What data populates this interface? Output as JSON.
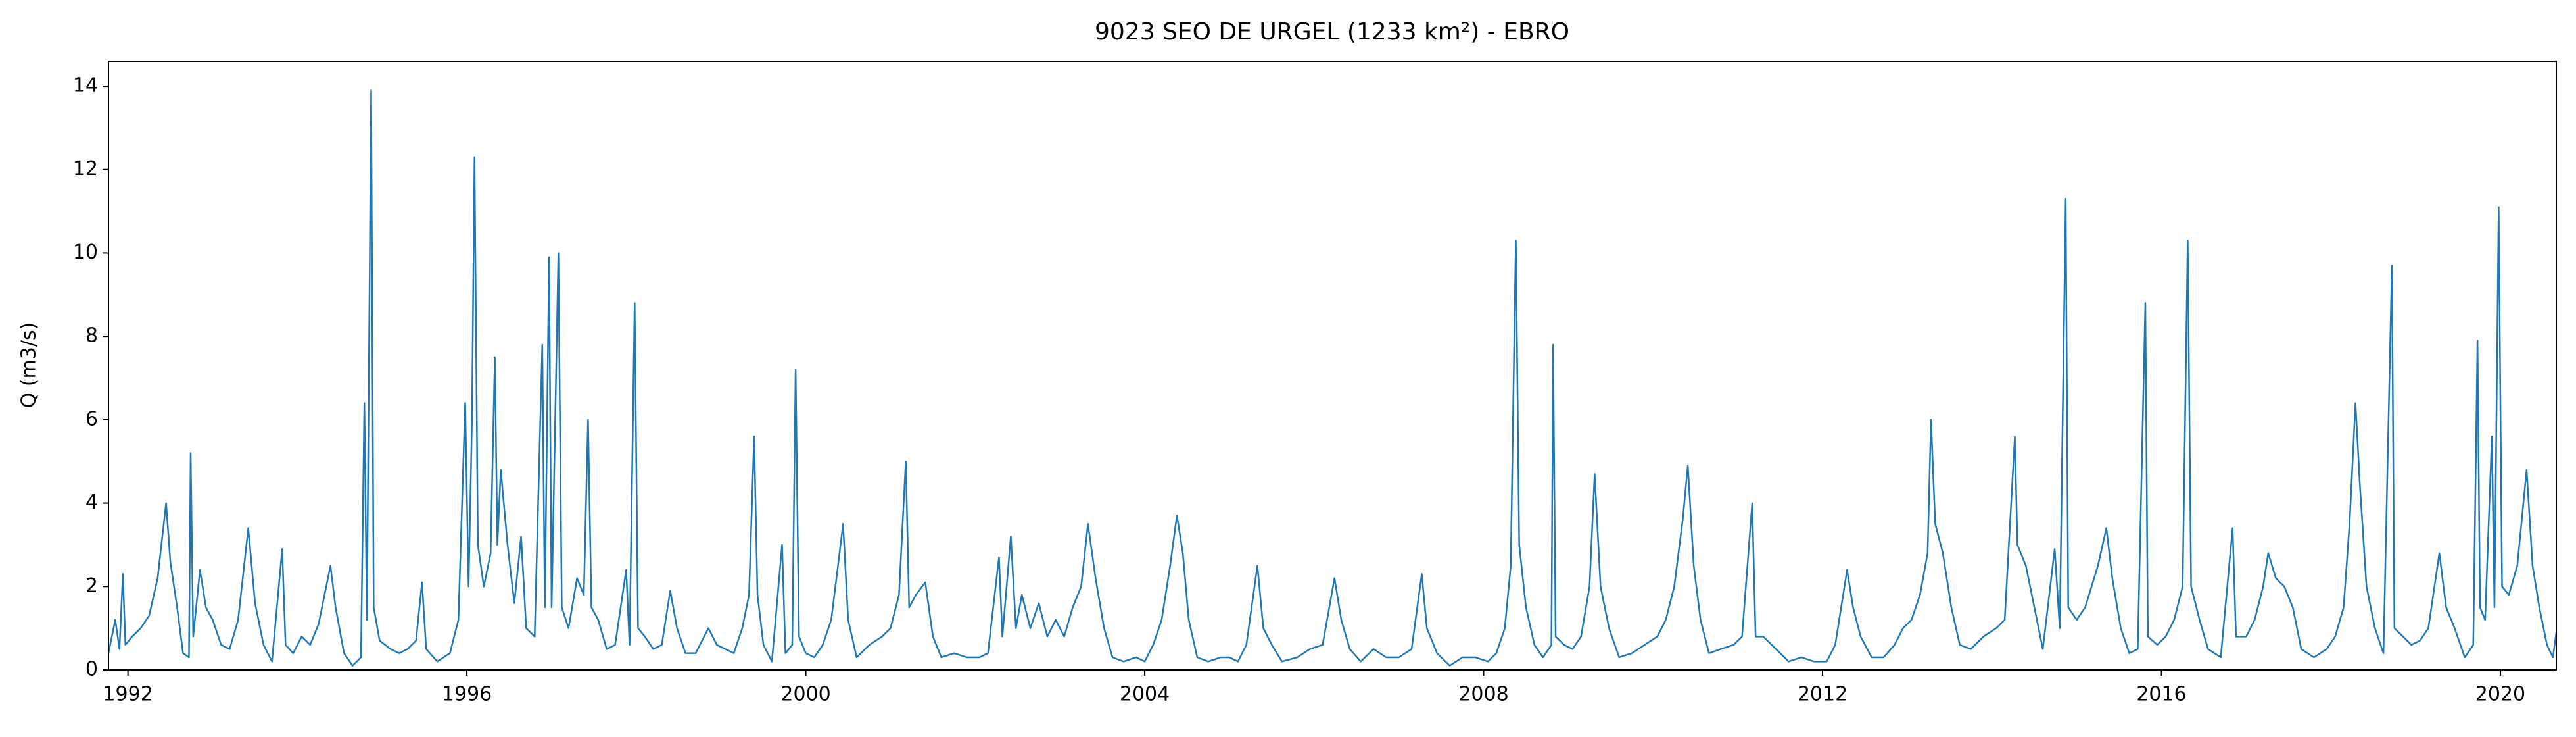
{
  "chart_data": {
    "type": "line",
    "title": "9023 SEO DE URGEL (1233 km²) - EBRO",
    "y_label": "Q (m3/s)",
    "xlim": [
      1991.77,
      2020.66
    ],
    "xticks": [
      1992,
      1996,
      2000,
      2004,
      2008,
      2012,
      2016,
      2020
    ],
    "ylim": [
      0,
      14.6
    ],
    "yticks": [
      0,
      2,
      4,
      6,
      8,
      10,
      12,
      14
    ],
    "grid": false,
    "series": [
      {
        "color": "#1f77b4",
        "x": [
          1991.77,
          1991.85,
          1991.9,
          1991.94,
          1991.97,
          1992.05,
          1992.15,
          1992.25,
          1992.35,
          1992.45,
          1992.5,
          1992.58,
          1992.65,
          1992.72,
          1992.74,
          1992.77,
          1992.85,
          1992.92,
          1993.0,
          1993.1,
          1993.2,
          1993.3,
          1993.42,
          1993.5,
          1993.6,
          1993.7,
          1993.82,
          1993.86,
          1993.95,
          1994.05,
          1994.15,
          1994.25,
          1994.39,
          1994.45,
          1994.55,
          1994.65,
          1994.75,
          1994.79,
          1994.82,
          1994.87,
          1994.9,
          1994.97,
          1995.1,
          1995.2,
          1995.3,
          1995.4,
          1995.47,
          1995.52,
          1995.65,
          1995.8,
          1995.9,
          1995.98,
          1996.02,
          1996.06,
          1996.09,
          1996.13,
          1996.2,
          1996.28,
          1996.33,
          1996.36,
          1996.4,
          1996.48,
          1996.56,
          1996.64,
          1996.7,
          1996.8,
          1996.89,
          1996.92,
          1996.97,
          1997.0,
          1997.08,
          1997.12,
          1997.2,
          1997.3,
          1997.38,
          1997.43,
          1997.47,
          1997.55,
          1997.65,
          1997.75,
          1997.88,
          1997.92,
          1997.98,
          1998.02,
          1998.1,
          1998.2,
          1998.3,
          1998.4,
          1998.48,
          1998.58,
          1998.7,
          1998.85,
          1998.95,
          1999.05,
          1999.15,
          1999.25,
          1999.33,
          1999.39,
          1999.43,
          1999.5,
          1999.6,
          1999.72,
          1999.76,
          1999.84,
          1999.88,
          1999.92,
          2000.0,
          2000.1,
          2000.2,
          2000.3,
          2000.38,
          2000.44,
          2000.5,
          2000.6,
          2000.75,
          2000.9,
          2001.0,
          2001.1,
          2001.18,
          2001.22,
          2001.3,
          2001.41,
          2001.5,
          2001.6,
          2001.75,
          2001.9,
          2002.05,
          2002.15,
          2002.28,
          2002.32,
          2002.42,
          2002.48,
          2002.55,
          2002.65,
          2002.75,
          2002.85,
          2002.95,
          2003.05,
          2003.15,
          2003.25,
          2003.33,
          2003.42,
          2003.52,
          2003.62,
          2003.75,
          2003.9,
          2004.0,
          2004.1,
          2004.2,
          2004.3,
          2004.38,
          2004.45,
          2004.52,
          2004.62,
          2004.75,
          2004.9,
          2005.0,
          2005.1,
          2005.2,
          2005.33,
          2005.4,
          2005.5,
          2005.62,
          2005.8,
          2005.95,
          2006.1,
          2006.24,
          2006.32,
          2006.42,
          2006.55,
          2006.7,
          2006.85,
          2007.0,
          2007.15,
          2007.27,
          2007.33,
          2007.45,
          2007.6,
          2007.75,
          2007.9,
          2008.05,
          2008.15,
          2008.25,
          2008.32,
          2008.38,
          2008.42,
          2008.5,
          2008.6,
          2008.7,
          2008.8,
          2008.82,
          2008.85,
          2008.95,
          2009.05,
          2009.15,
          2009.25,
          2009.31,
          2009.38,
          2009.48,
          2009.6,
          2009.75,
          2009.9,
          2010.05,
          2010.15,
          2010.25,
          2010.35,
          2010.41,
          2010.48,
          2010.56,
          2010.66,
          2010.8,
          2010.95,
          2011.05,
          2011.17,
          2011.21,
          2011.3,
          2011.45,
          2011.6,
          2011.75,
          2011.9,
          2012.05,
          2012.15,
          2012.29,
          2012.36,
          2012.45,
          2012.58,
          2012.72,
          2012.85,
          2012.95,
          2013.05,
          2013.15,
          2013.24,
          2013.28,
          2013.33,
          2013.42,
          2013.52,
          2013.62,
          2013.75,
          2013.9,
          2014.05,
          2014.15,
          2014.27,
          2014.3,
          2014.4,
          2014.5,
          2014.6,
          2014.74,
          2014.8,
          2014.87,
          2014.9,
          2015.0,
          2015.1,
          2015.25,
          2015.35,
          2015.42,
          2015.52,
          2015.62,
          2015.72,
          2015.81,
          2015.84,
          2015.95,
          2016.05,
          2016.15,
          2016.25,
          2016.31,
          2016.35,
          2016.45,
          2016.55,
          2016.7,
          2016.84,
          2016.88,
          2017.0,
          2017.1,
          2017.2,
          2017.26,
          2017.35,
          2017.45,
          2017.55,
          2017.65,
          2017.8,
          2017.95,
          2018.05,
          2018.15,
          2018.22,
          2018.29,
          2018.34,
          2018.42,
          2018.52,
          2018.62,
          2018.72,
          2018.75,
          2018.85,
          2018.95,
          2019.05,
          2019.15,
          2019.28,
          2019.36,
          2019.46,
          2019.58,
          2019.68,
          2019.73,
          2019.76,
          2019.82,
          2019.9,
          2019.93,
          2019.98,
          2020.02,
          2020.1,
          2020.2,
          2020.31,
          2020.38,
          2020.46,
          2020.55,
          2020.62,
          2020.66
        ],
        "values": [
          0.4,
          1.2,
          0.5,
          2.3,
          0.6,
          0.8,
          1.0,
          1.3,
          2.2,
          4.0,
          2.6,
          1.5,
          0.4,
          0.3,
          5.2,
          0.8,
          2.4,
          1.5,
          1.2,
          0.6,
          0.5,
          1.2,
          3.4,
          1.6,
          0.6,
          0.2,
          2.9,
          0.6,
          0.4,
          0.8,
          0.6,
          1.1,
          2.5,
          1.5,
          0.4,
          0.1,
          0.3,
          6.4,
          1.2,
          13.9,
          1.5,
          0.7,
          0.5,
          0.4,
          0.5,
          0.7,
          2.1,
          0.5,
          0.2,
          0.4,
          1.2,
          6.4,
          2.0,
          6.0,
          12.3,
          3.0,
          2.0,
          2.8,
          7.5,
          3.0,
          4.8,
          3.0,
          1.6,
          3.2,
          1.0,
          0.8,
          7.8,
          1.5,
          9.9,
          1.5,
          10.0,
          1.5,
          1.0,
          2.2,
          1.8,
          6.0,
          1.5,
          1.2,
          0.5,
          0.6,
          2.4,
          0.6,
          8.8,
          1.0,
          0.8,
          0.5,
          0.6,
          1.9,
          1.0,
          0.4,
          0.4,
          1.0,
          0.6,
          0.5,
          0.4,
          1.0,
          1.8,
          5.6,
          1.8,
          0.6,
          0.2,
          3.0,
          0.4,
          0.6,
          7.2,
          0.8,
          0.4,
          0.3,
          0.6,
          1.2,
          2.5,
          3.5,
          1.2,
          0.3,
          0.6,
          0.8,
          1.0,
          1.8,
          5.0,
          1.5,
          1.8,
          2.1,
          0.8,
          0.3,
          0.4,
          0.3,
          0.3,
          0.4,
          2.7,
          0.8,
          3.2,
          1.0,
          1.8,
          1.0,
          1.6,
          0.8,
          1.2,
          0.8,
          1.5,
          2.0,
          3.5,
          2.2,
          1.0,
          0.3,
          0.2,
          0.3,
          0.2,
          0.6,
          1.2,
          2.5,
          3.7,
          2.8,
          1.2,
          0.3,
          0.2,
          0.3,
          0.3,
          0.2,
          0.6,
          2.5,
          1.0,
          0.6,
          0.2,
          0.3,
          0.5,
          0.6,
          2.2,
          1.2,
          0.5,
          0.2,
          0.5,
          0.3,
          0.3,
          0.5,
          2.3,
          1.0,
          0.4,
          0.1,
          0.3,
          0.3,
          0.2,
          0.4,
          1.0,
          2.5,
          10.3,
          3.0,
          1.5,
          0.6,
          0.3,
          0.6,
          7.8,
          0.8,
          0.6,
          0.5,
          0.8,
          2.0,
          4.7,
          2.0,
          1.0,
          0.3,
          0.4,
          0.6,
          0.8,
          1.2,
          2.0,
          3.6,
          4.9,
          2.5,
          1.2,
          0.4,
          0.5,
          0.6,
          0.8,
          4.0,
          0.8,
          0.8,
          0.5,
          0.2,
          0.3,
          0.2,
          0.2,
          0.6,
          2.4,
          1.5,
          0.8,
          0.3,
          0.3,
          0.6,
          1.0,
          1.2,
          1.8,
          2.8,
          6.0,
          3.5,
          2.8,
          1.5,
          0.6,
          0.5,
          0.8,
          1.0,
          1.2,
          5.6,
          3.0,
          2.5,
          1.5,
          0.5,
          2.9,
          1.0,
          11.3,
          1.5,
          1.2,
          1.5,
          2.5,
          3.4,
          2.2,
          1.0,
          0.4,
          0.5,
          8.8,
          0.8,
          0.6,
          0.8,
          1.2,
          2.0,
          10.3,
          2.0,
          1.2,
          0.5,
          0.3,
          3.4,
          0.8,
          0.8,
          1.2,
          2.0,
          2.8,
          2.2,
          2.0,
          1.5,
          0.5,
          0.3,
          0.5,
          0.8,
          1.5,
          3.5,
          6.4,
          4.5,
          2.0,
          1.0,
          0.4,
          9.7,
          1.0,
          0.8,
          0.6,
          0.7,
          1.0,
          2.8,
          1.5,
          1.0,
          0.3,
          0.6,
          7.9,
          1.5,
          1.2,
          5.6,
          1.5,
          11.1,
          2.0,
          1.8,
          2.5,
          4.8,
          2.5,
          1.5,
          0.6,
          0.3,
          0.9
        ]
      }
    ]
  }
}
